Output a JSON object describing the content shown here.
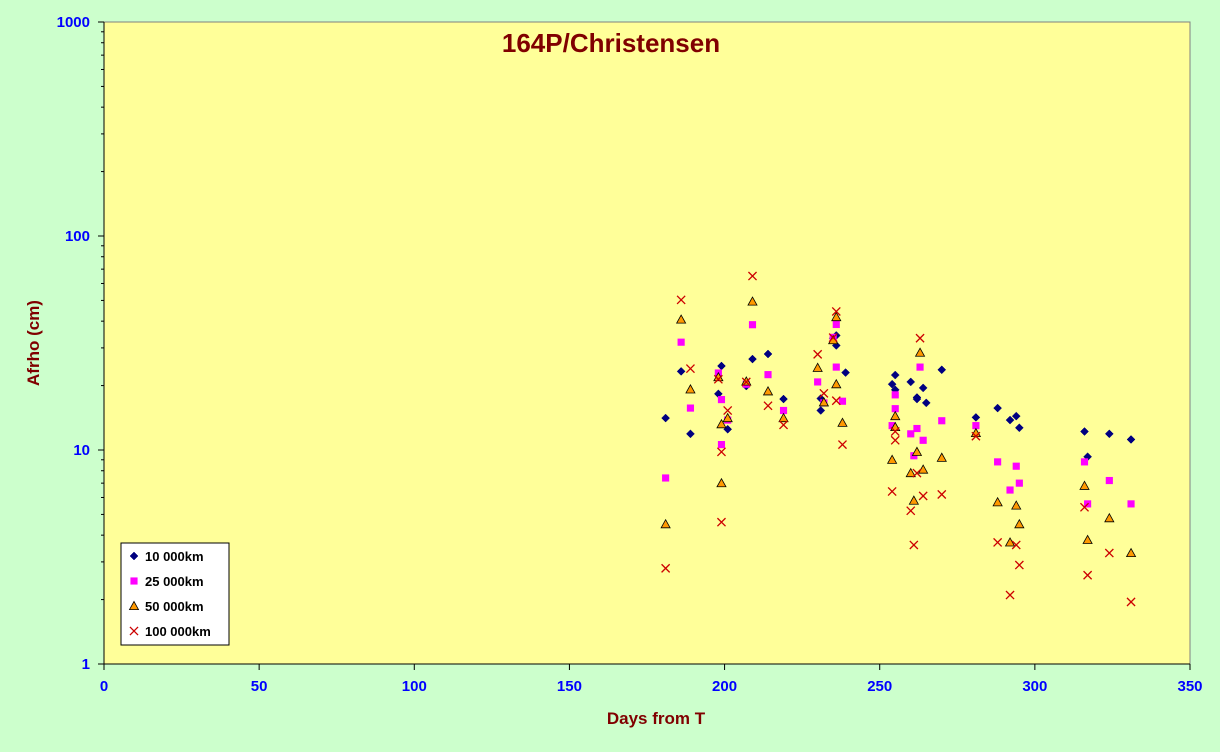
{
  "chart_data": {
    "type": "scatter",
    "title": "164P/Christensen",
    "xlabel": "Days from T",
    "ylabel": "Afrho (cm)",
    "xlim": [
      0,
      350
    ],
    "ylim": [
      1,
      1000
    ],
    "yscale": "log",
    "xticks": [
      0,
      50,
      100,
      150,
      200,
      250,
      300,
      350
    ],
    "yticks": [
      1,
      10,
      100,
      1000
    ],
    "grid": false,
    "legend_position": "bottom-left",
    "colors": {
      "background": "#ccffcc",
      "plot_area": "#ffff99",
      "title": "#800000",
      "tick_labels": "#0000ff"
    },
    "series": [
      {
        "name": "10 000km",
        "marker": "diamond",
        "color": "#000080",
        "points": [
          [
            181,
            14.1
          ],
          [
            186,
            23.3
          ],
          [
            189,
            11.9
          ],
          [
            198,
            18.3
          ],
          [
            199,
            24.7
          ],
          [
            201,
            12.5
          ],
          [
            207,
            19.9
          ],
          [
            209,
            26.6
          ],
          [
            214,
            28.1
          ],
          [
            219,
            17.3
          ],
          [
            231,
            17.4
          ],
          [
            231,
            15.3
          ],
          [
            235,
            33.3
          ],
          [
            236,
            30.8
          ],
          [
            236,
            34.3
          ],
          [
            239,
            23.0
          ],
          [
            254,
            20.3
          ],
          [
            255,
            22.4
          ],
          [
            255,
            19.1
          ],
          [
            260,
            20.8
          ],
          [
            262,
            17.6
          ],
          [
            262,
            17.3
          ],
          [
            264,
            19.5
          ],
          [
            265,
            16.6
          ],
          [
            270,
            23.7
          ],
          [
            281,
            14.2
          ],
          [
            288,
            15.7
          ],
          [
            292,
            13.8
          ],
          [
            294,
            14.4
          ],
          [
            295,
            12.7
          ],
          [
            316,
            12.2
          ],
          [
            317,
            9.3
          ],
          [
            324,
            11.9
          ],
          [
            331,
            11.2
          ]
        ]
      },
      {
        "name": "25 000km",
        "marker": "square",
        "color": "#ff00ff",
        "points": [
          [
            181,
            7.4
          ],
          [
            186,
            31.9
          ],
          [
            189,
            15.7
          ],
          [
            198,
            22.9
          ],
          [
            199,
            10.6
          ],
          [
            199,
            17.2
          ],
          [
            201,
            13.8
          ],
          [
            207,
            20.3
          ],
          [
            209,
            38.5
          ],
          [
            214,
            22.5
          ],
          [
            219,
            15.3
          ],
          [
            230,
            20.8
          ],
          [
            232,
            16.6
          ],
          [
            235,
            33.6
          ],
          [
            236,
            38.6
          ],
          [
            236,
            24.4
          ],
          [
            238,
            16.9
          ],
          [
            254,
            13.0
          ],
          [
            255,
            15.6
          ],
          [
            255,
            18.1
          ],
          [
            260,
            11.9
          ],
          [
            261,
            9.4
          ],
          [
            262,
            12.6
          ],
          [
            263,
            24.4
          ],
          [
            264,
            11.1
          ],
          [
            270,
            13.7
          ],
          [
            281,
            13.0
          ],
          [
            288,
            8.8
          ],
          [
            292,
            6.5
          ],
          [
            294,
            8.4
          ],
          [
            295,
            7.0
          ],
          [
            316,
            8.8
          ],
          [
            317,
            5.6
          ],
          [
            324,
            7.2
          ],
          [
            331,
            5.6
          ]
        ]
      },
      {
        "name": "50 000km",
        "marker": "triangle",
        "color": "#ff9900",
        "points": [
          [
            181,
            4.5
          ],
          [
            186,
            40.7
          ],
          [
            189,
            19.2
          ],
          [
            198,
            21.9
          ],
          [
            199,
            7.0
          ],
          [
            199,
            13.2
          ],
          [
            201,
            14.1
          ],
          [
            207,
            20.9
          ],
          [
            209,
            49.4
          ],
          [
            214,
            18.8
          ],
          [
            219,
            14.1
          ],
          [
            230,
            24.2
          ],
          [
            232,
            16.7
          ],
          [
            235,
            32.6
          ],
          [
            236,
            41.8
          ],
          [
            236,
            20.3
          ],
          [
            238,
            13.4
          ],
          [
            254,
            9.0
          ],
          [
            255,
            14.4
          ],
          [
            255,
            12.8
          ],
          [
            260,
            7.8
          ],
          [
            261,
            5.8
          ],
          [
            262,
            9.8
          ],
          [
            263,
            28.5
          ],
          [
            264,
            8.1
          ],
          [
            270,
            9.2
          ],
          [
            281,
            12.0
          ],
          [
            288,
            5.7
          ],
          [
            292,
            3.7
          ],
          [
            294,
            5.5
          ],
          [
            295,
            4.5
          ],
          [
            316,
            6.8
          ],
          [
            317,
            3.8
          ],
          [
            324,
            4.8
          ],
          [
            331,
            3.3
          ]
        ]
      },
      {
        "name": "100 000km",
        "marker": "x",
        "color": "#cc0000",
        "points": [
          [
            181,
            2.8
          ],
          [
            186,
            50.3
          ],
          [
            189,
            24.0
          ],
          [
            198,
            21.4
          ],
          [
            199,
            4.6
          ],
          [
            199,
            9.8
          ],
          [
            201,
            15.3
          ],
          [
            207,
            20.8
          ],
          [
            209,
            65.0
          ],
          [
            214,
            16.1
          ],
          [
            219,
            13.1
          ],
          [
            230,
            28.0
          ],
          [
            232,
            18.4
          ],
          [
            235,
            33.5
          ],
          [
            236,
            44.4
          ],
          [
            236,
            17.0
          ],
          [
            238,
            10.6
          ],
          [
            254,
            6.4
          ],
          [
            255,
            11.1
          ],
          [
            255,
            12.2
          ],
          [
            260,
            5.2
          ],
          [
            261,
            3.6
          ],
          [
            262,
            7.8
          ],
          [
            263,
            33.3
          ],
          [
            264,
            6.1
          ],
          [
            270,
            6.2
          ],
          [
            281,
            11.6
          ],
          [
            288,
            3.7
          ],
          [
            292,
            2.1
          ],
          [
            294,
            3.6
          ],
          [
            295,
            2.9
          ],
          [
            316,
            5.4
          ],
          [
            317,
            2.6
          ],
          [
            324,
            3.3
          ],
          [
            331,
            1.95
          ]
        ]
      }
    ]
  }
}
